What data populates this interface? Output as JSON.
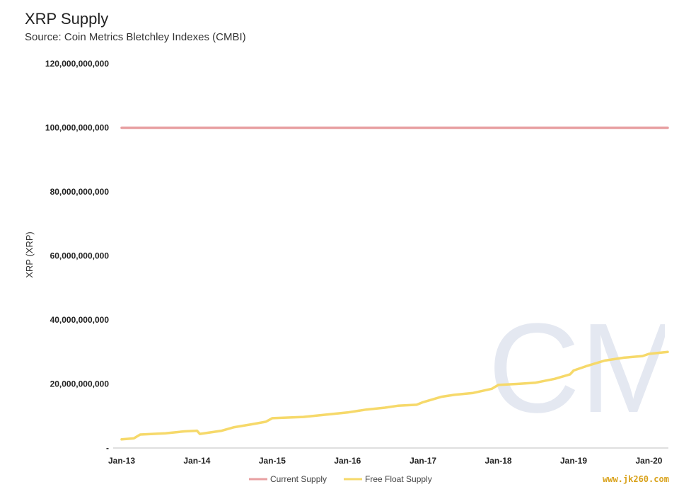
{
  "header": {
    "title": "XRP Supply",
    "subtitle": "Source: Coin Metrics Bletchley Indexes (CMBI)"
  },
  "watermark": {
    "logo": "CM",
    "site": "www.jk260.com"
  },
  "colors": {
    "current_supply": "#e8a0a2",
    "free_float": "#f6d96a",
    "logo": "#e4e8f1"
  },
  "chart_data": {
    "type": "line",
    "title": "XRP Supply",
    "subtitle": "Source: Coin Metrics Bletchley Indexes (CMBI)",
    "xlabel": "",
    "ylabel": "XRP (XRP)",
    "ylim": [
      0,
      120000000000
    ],
    "xlim": [
      "2013-01-01",
      "2020-04-01"
    ],
    "y_ticks": [
      0,
      20000000000,
      40000000000,
      60000000000,
      80000000000,
      100000000000,
      120000000000
    ],
    "y_tick_labels": [
      "-",
      "20,000,000,000",
      "40,000,000,000",
      "60,000,000,000",
      "80,000,000,000",
      "100,000,000,000",
      "120,000,000,000"
    ],
    "x_ticks": [
      "2013-01-01",
      "2014-01-01",
      "2015-01-01",
      "2016-01-01",
      "2017-01-01",
      "2018-01-01",
      "2019-01-01",
      "2020-01-01"
    ],
    "x_tick_labels": [
      "Jan-13",
      "Jan-14",
      "Jan-15",
      "Jan-16",
      "Jan-17",
      "Jan-18",
      "Jan-19",
      "Jan-20"
    ],
    "grid": false,
    "legend": "bottom-center",
    "series": [
      {
        "name": "Current Supply",
        "color": "#e8a0a2",
        "points": [
          [
            "2013-01-01",
            100000000000
          ],
          [
            "2020-04-01",
            99990000000
          ]
        ]
      },
      {
        "name": "Free Float Supply",
        "color": "#f6d96a",
        "points": [
          [
            "2013-01-01",
            2700000000
          ],
          [
            "2013-03-01",
            3000000000
          ],
          [
            "2013-04-01",
            4200000000
          ],
          [
            "2013-08-01",
            4600000000
          ],
          [
            "2013-11-01",
            5200000000
          ],
          [
            "2014-01-01",
            5400000000
          ],
          [
            "2014-01-15",
            4400000000
          ],
          [
            "2014-05-01",
            5400000000
          ],
          [
            "2014-07-01",
            6500000000
          ],
          [
            "2014-10-01",
            7500000000
          ],
          [
            "2014-12-01",
            8200000000
          ],
          [
            "2015-01-01",
            9300000000
          ],
          [
            "2015-06-01",
            9700000000
          ],
          [
            "2015-10-01",
            10500000000
          ],
          [
            "2016-01-01",
            11100000000
          ],
          [
            "2016-04-01",
            12000000000
          ],
          [
            "2016-07-01",
            12600000000
          ],
          [
            "2016-09-01",
            13200000000
          ],
          [
            "2016-12-01",
            13500000000
          ],
          [
            "2017-01-01",
            14300000000
          ],
          [
            "2017-04-01",
            16000000000
          ],
          [
            "2017-06-01",
            16600000000
          ],
          [
            "2017-09-01",
            17200000000
          ],
          [
            "2017-12-01",
            18500000000
          ],
          [
            "2018-01-01",
            19700000000
          ],
          [
            "2018-04-01",
            20000000000
          ],
          [
            "2018-07-01",
            20400000000
          ],
          [
            "2018-10-01",
            21600000000
          ],
          [
            "2018-12-15",
            23000000000
          ],
          [
            "2019-01-01",
            24200000000
          ],
          [
            "2019-03-01",
            25500000000
          ],
          [
            "2019-06-01",
            27300000000
          ],
          [
            "2019-09-01",
            28200000000
          ],
          [
            "2019-12-01",
            28700000000
          ],
          [
            "2020-01-01",
            29400000000
          ],
          [
            "2020-04-01",
            30000000000
          ]
        ]
      }
    ]
  }
}
